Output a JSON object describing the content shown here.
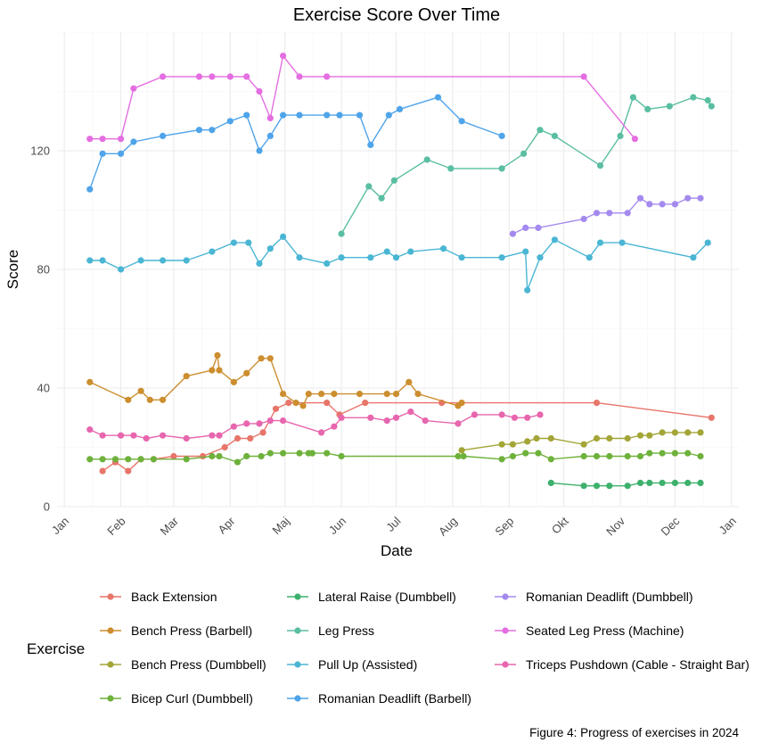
{
  "chart_data": {
    "type": "line",
    "title": "Exercise Score Over Time",
    "xlabel": "Date",
    "ylabel": "Score",
    "caption": "Figure 4: Progress of exercises in 2024",
    "legend_title": "Exercise",
    "legend_position": "bottom",
    "grid": true,
    "x_ticks": [
      {
        "date": "2024-01-01",
        "label": "Jan"
      },
      {
        "date": "2024-02-01",
        "label": "Feb"
      },
      {
        "date": "2024-03-01",
        "label": "Mar"
      },
      {
        "date": "2024-04-01",
        "label": "Apr"
      },
      {
        "date": "2024-05-01",
        "label": "Maj"
      },
      {
        "date": "2024-06-01",
        "label": "Jun"
      },
      {
        "date": "2024-07-01",
        "label": "Jul"
      },
      {
        "date": "2024-08-01",
        "label": "Aug"
      },
      {
        "date": "2024-09-01",
        "label": "Sep"
      },
      {
        "date": "2024-10-01",
        "label": "Okt"
      },
      {
        "date": "2024-11-01",
        "label": "Nov"
      },
      {
        "date": "2024-12-01",
        "label": "Dec"
      },
      {
        "date": "2025-01-01",
        "label": "Jan"
      }
    ],
    "xlim": [
      "2023-12-28",
      "2025-01-05"
    ],
    "y_ticks": [
      0,
      40,
      80,
      120
    ],
    "ylim": [
      0,
      160
    ],
    "series": [
      {
        "name": "Back Extension",
        "color": "#E7756A",
        "points": [
          [
            "2024-01-22",
            12
          ],
          [
            "2024-01-29",
            15
          ],
          [
            "2024-02-05",
            12
          ],
          [
            "2024-02-12",
            16
          ],
          [
            "2024-02-19",
            16
          ],
          [
            "2024-03-01",
            17
          ],
          [
            "2024-03-17",
            17
          ],
          [
            "2024-03-29",
            20
          ],
          [
            "2024-04-05",
            23
          ],
          [
            "2024-04-12",
            23
          ],
          [
            "2024-04-19",
            25
          ],
          [
            "2024-04-26",
            33
          ],
          [
            "2024-05-03",
            35
          ],
          [
            "2024-05-24",
            35
          ],
          [
            "2024-05-31",
            31
          ],
          [
            "2024-06-14",
            35
          ],
          [
            "2024-07-26",
            35
          ],
          [
            "2024-10-19",
            35
          ],
          [
            "2024-12-21",
            30
          ]
        ]
      },
      {
        "name": "Bench Press (Barbell)",
        "color": "#CC8E2E",
        "points": [
          [
            "2024-01-15",
            42
          ],
          [
            "2024-02-05",
            36
          ],
          [
            "2024-02-12",
            39
          ],
          [
            "2024-02-17",
            36
          ],
          [
            "2024-02-24",
            36
          ],
          [
            "2024-03-08",
            44
          ],
          [
            "2024-03-22",
            46
          ],
          [
            "2024-03-25",
            51
          ],
          [
            "2024-03-26",
            46
          ],
          [
            "2024-04-03",
            42
          ],
          [
            "2024-04-10",
            45
          ],
          [
            "2024-04-18",
            50
          ],
          [
            "2024-04-23",
            50
          ],
          [
            "2024-04-30",
            38
          ],
          [
            "2024-05-07",
            35
          ],
          [
            "2024-05-11",
            34
          ],
          [
            "2024-05-14",
            38
          ],
          [
            "2024-05-21",
            38
          ],
          [
            "2024-05-28",
            38
          ],
          [
            "2024-06-11",
            38
          ],
          [
            "2024-06-26",
            38
          ],
          [
            "2024-07-01",
            38
          ],
          [
            "2024-07-08",
            42
          ],
          [
            "2024-07-13",
            38
          ],
          [
            "2024-08-04",
            34
          ],
          [
            "2024-08-06",
            35
          ]
        ]
      },
      {
        "name": "Bench Press (Dumbbell)",
        "color": "#A3A537",
        "points": [
          [
            "2024-08-06",
            19
          ],
          [
            "2024-08-28",
            21
          ],
          [
            "2024-09-03",
            21
          ],
          [
            "2024-09-11",
            22
          ],
          [
            "2024-09-16",
            23
          ],
          [
            "2024-09-24",
            23
          ],
          [
            "2024-10-12",
            21
          ],
          [
            "2024-10-19",
            23
          ],
          [
            "2024-10-26",
            23
          ],
          [
            "2024-11-05",
            23
          ],
          [
            "2024-11-12",
            24
          ],
          [
            "2024-11-17",
            24
          ],
          [
            "2024-11-24",
            25
          ],
          [
            "2024-12-01",
            25
          ],
          [
            "2024-12-08",
            25
          ],
          [
            "2024-12-15",
            25
          ]
        ]
      },
      {
        "name": "Bicep Curl (Dumbbell)",
        "color": "#6EB13B",
        "points": [
          [
            "2024-01-15",
            16
          ],
          [
            "2024-01-22",
            16
          ],
          [
            "2024-01-29",
            16
          ],
          [
            "2024-02-05",
            16
          ],
          [
            "2024-02-12",
            16
          ],
          [
            "2024-02-19",
            16
          ],
          [
            "2024-03-08",
            16
          ],
          [
            "2024-03-22",
            17
          ],
          [
            "2024-03-26",
            17
          ],
          [
            "2024-04-05",
            15
          ],
          [
            "2024-04-10",
            17
          ],
          [
            "2024-04-18",
            17
          ],
          [
            "2024-04-23",
            18
          ],
          [
            "2024-04-30",
            18
          ],
          [
            "2024-05-09",
            18
          ],
          [
            "2024-05-14",
            18
          ],
          [
            "2024-05-16",
            18
          ],
          [
            "2024-05-24",
            18
          ],
          [
            "2024-06-01",
            17
          ],
          [
            "2024-08-04",
            17
          ],
          [
            "2024-08-07",
            17
          ],
          [
            "2024-08-28",
            16
          ],
          [
            "2024-09-03",
            17
          ],
          [
            "2024-09-10",
            18
          ],
          [
            "2024-09-17",
            18
          ],
          [
            "2024-09-24",
            16
          ],
          [
            "2024-10-12",
            17
          ],
          [
            "2024-10-19",
            17
          ],
          [
            "2024-10-26",
            17
          ],
          [
            "2024-11-05",
            17
          ],
          [
            "2024-11-12",
            17
          ],
          [
            "2024-11-17",
            18
          ],
          [
            "2024-11-24",
            18
          ],
          [
            "2024-12-01",
            18
          ],
          [
            "2024-12-08",
            18
          ],
          [
            "2024-12-15",
            17
          ]
        ]
      },
      {
        "name": "Lateral Raise (Dumbbell)",
        "color": "#3DB16C",
        "points": [
          [
            "2024-09-24",
            8
          ],
          [
            "2024-10-12",
            7
          ],
          [
            "2024-10-19",
            7
          ],
          [
            "2024-10-26",
            7
          ],
          [
            "2024-11-05",
            7
          ],
          [
            "2024-11-12",
            8
          ],
          [
            "2024-11-17",
            8
          ],
          [
            "2024-11-24",
            8
          ],
          [
            "2024-12-01",
            8
          ],
          [
            "2024-12-08",
            8
          ],
          [
            "2024-12-15",
            8
          ]
        ]
      },
      {
        "name": "Leg Press",
        "color": "#5ABEA2",
        "points": [
          [
            "2024-06-01",
            92
          ],
          [
            "2024-06-16",
            108
          ],
          [
            "2024-06-23",
            104
          ],
          [
            "2024-06-30",
            110
          ],
          [
            "2024-07-18",
            117
          ],
          [
            "2024-07-31",
            114
          ],
          [
            "2024-08-28",
            114
          ],
          [
            "2024-09-09",
            119
          ],
          [
            "2024-09-18",
            127
          ],
          [
            "2024-09-26",
            125
          ],
          [
            "2024-10-21",
            115
          ],
          [
            "2024-11-01",
            125
          ],
          [
            "2024-11-08",
            138
          ],
          [
            "2024-11-16",
            134
          ],
          [
            "2024-11-28",
            135
          ],
          [
            "2024-12-11",
            138
          ],
          [
            "2024-12-19",
            137
          ],
          [
            "2024-12-21",
            135
          ]
        ]
      },
      {
        "name": "Pull Up (Assisted)",
        "color": "#4AB6D4",
        "points": [
          [
            "2024-01-15",
            83
          ],
          [
            "2024-01-22",
            83
          ],
          [
            "2024-02-01",
            80
          ],
          [
            "2024-02-12",
            83
          ],
          [
            "2024-02-24",
            83
          ],
          [
            "2024-03-08",
            83
          ],
          [
            "2024-03-22",
            86
          ],
          [
            "2024-04-03",
            89
          ],
          [
            "2024-04-11",
            89
          ],
          [
            "2024-04-17",
            82
          ],
          [
            "2024-04-23",
            87
          ],
          [
            "2024-04-30",
            91
          ],
          [
            "2024-05-09",
            84
          ],
          [
            "2024-05-24",
            82
          ],
          [
            "2024-06-01",
            84
          ],
          [
            "2024-06-17",
            84
          ],
          [
            "2024-06-26",
            86
          ],
          [
            "2024-07-01",
            84
          ],
          [
            "2024-07-09",
            86
          ],
          [
            "2024-07-27",
            87
          ],
          [
            "2024-08-06",
            84
          ],
          [
            "2024-08-28",
            84
          ],
          [
            "2024-09-10",
            86
          ],
          [
            "2024-09-11",
            73
          ],
          [
            "2024-09-18",
            84
          ],
          [
            "2024-09-26",
            90
          ],
          [
            "2024-10-15",
            84
          ],
          [
            "2024-10-21",
            89
          ],
          [
            "2024-11-02",
            89
          ],
          [
            "2024-12-11",
            84
          ],
          [
            "2024-12-19",
            89
          ]
        ]
      },
      {
        "name": "Romanian Deadlift (Barbell)",
        "color": "#4FA4EA",
        "points": [
          [
            "2024-01-15",
            107
          ],
          [
            "2024-01-22",
            119
          ],
          [
            "2024-02-01",
            119
          ],
          [
            "2024-02-08",
            123
          ],
          [
            "2024-02-24",
            125
          ],
          [
            "2024-03-15",
            127
          ],
          [
            "2024-03-22",
            127
          ],
          [
            "2024-04-01",
            130
          ],
          [
            "2024-04-10",
            132
          ],
          [
            "2024-04-17",
            120
          ],
          [
            "2024-04-23",
            125
          ],
          [
            "2024-04-30",
            132
          ],
          [
            "2024-05-09",
            132
          ],
          [
            "2024-05-24",
            132
          ],
          [
            "2024-05-31",
            132
          ],
          [
            "2024-06-11",
            132
          ],
          [
            "2024-06-17",
            122
          ],
          [
            "2024-06-27",
            132
          ],
          [
            "2024-07-03",
            134
          ],
          [
            "2024-07-24",
            138
          ],
          [
            "2024-08-06",
            130
          ],
          [
            "2024-08-28",
            125
          ]
        ]
      },
      {
        "name": "Romanian Deadlift (Dumbbell)",
        "color": "#A48AEF",
        "points": [
          [
            "2024-09-03",
            92
          ],
          [
            "2024-09-10",
            94
          ],
          [
            "2024-09-17",
            94
          ],
          [
            "2024-10-12",
            97
          ],
          [
            "2024-10-19",
            99
          ],
          [
            "2024-10-26",
            99
          ],
          [
            "2024-11-05",
            99
          ],
          [
            "2024-11-12",
            104
          ],
          [
            "2024-11-17",
            102
          ],
          [
            "2024-11-24",
            102
          ],
          [
            "2024-12-01",
            102
          ],
          [
            "2024-12-08",
            104
          ],
          [
            "2024-12-15",
            104
          ]
        ]
      },
      {
        "name": "Seated Leg Press (Machine)",
        "color": "#E46EE1",
        "points": [
          [
            "2024-01-15",
            124
          ],
          [
            "2024-01-22",
            124
          ],
          [
            "2024-02-01",
            124
          ],
          [
            "2024-02-08",
            141
          ],
          [
            "2024-02-24",
            145
          ],
          [
            "2024-03-15",
            145
          ],
          [
            "2024-03-22",
            145
          ],
          [
            "2024-04-01",
            145
          ],
          [
            "2024-04-10",
            145
          ],
          [
            "2024-04-17",
            140
          ],
          [
            "2024-04-23",
            131
          ],
          [
            "2024-04-30",
            152
          ],
          [
            "2024-05-09",
            145
          ],
          [
            "2024-05-24",
            145
          ],
          [
            "2024-10-12",
            145
          ],
          [
            "2024-11-09",
            124
          ]
        ]
      },
      {
        "name": "Triceps Pushdown (Cable - Straight Bar)",
        "color": "#E766AE",
        "points": [
          [
            "2024-01-15",
            26
          ],
          [
            "2024-01-22",
            24
          ],
          [
            "2024-02-01",
            24
          ],
          [
            "2024-02-08",
            24
          ],
          [
            "2024-02-15",
            23
          ],
          [
            "2024-02-24",
            24
          ],
          [
            "2024-03-08",
            23
          ],
          [
            "2024-03-22",
            24
          ],
          [
            "2024-03-26",
            24
          ],
          [
            "2024-04-03",
            27
          ],
          [
            "2024-04-10",
            28
          ],
          [
            "2024-04-17",
            28
          ],
          [
            "2024-04-23",
            29
          ],
          [
            "2024-04-30",
            29
          ],
          [
            "2024-05-21",
            25
          ],
          [
            "2024-05-28",
            27
          ],
          [
            "2024-06-01",
            30
          ],
          [
            "2024-06-17",
            30
          ],
          [
            "2024-06-26",
            29
          ],
          [
            "2024-07-01",
            30
          ],
          [
            "2024-07-09",
            32
          ],
          [
            "2024-07-17",
            29
          ],
          [
            "2024-08-04",
            28
          ],
          [
            "2024-08-13",
            31
          ],
          [
            "2024-08-28",
            31
          ],
          [
            "2024-09-04",
            30
          ],
          [
            "2024-09-11",
            30
          ],
          [
            "2024-09-18",
            31
          ]
        ]
      }
    ]
  }
}
